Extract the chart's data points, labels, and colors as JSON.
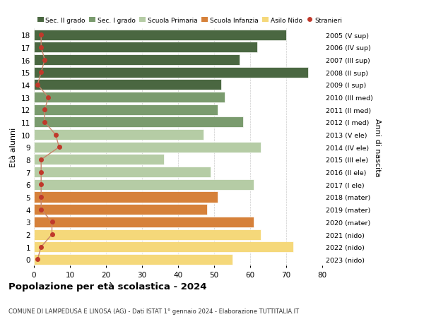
{
  "ages": [
    18,
    17,
    16,
    15,
    14,
    13,
    12,
    11,
    10,
    9,
    8,
    7,
    6,
    5,
    4,
    3,
    2,
    1,
    0
  ],
  "bar_values": [
    70,
    62,
    57,
    76,
    52,
    53,
    51,
    58,
    47,
    63,
    36,
    49,
    61,
    51,
    48,
    61,
    63,
    72,
    55
  ],
  "stranieri": [
    2,
    2,
    3,
    2,
    1,
    4,
    3,
    3,
    6,
    7,
    2,
    2,
    2,
    2,
    2,
    5,
    5,
    2,
    1
  ],
  "right_labels": [
    "2005 (V sup)",
    "2006 (IV sup)",
    "2007 (III sup)",
    "2008 (II sup)",
    "2009 (I sup)",
    "2010 (III med)",
    "2011 (II med)",
    "2012 (I med)",
    "2013 (V ele)",
    "2014 (IV ele)",
    "2015 (III ele)",
    "2016 (II ele)",
    "2017 (I ele)",
    "2018 (mater)",
    "2019 (mater)",
    "2020 (mater)",
    "2021 (nido)",
    "2022 (nido)",
    "2023 (nido)"
  ],
  "bar_colors": [
    "#4a6741",
    "#4a6741",
    "#4a6741",
    "#4a6741",
    "#4a6741",
    "#7a9b6e",
    "#7a9b6e",
    "#7a9b6e",
    "#b5cca5",
    "#b5cca5",
    "#b5cca5",
    "#b5cca5",
    "#b5cca5",
    "#d6813a",
    "#d6813a",
    "#d6813a",
    "#f5d87a",
    "#f5d87a",
    "#f5d87a"
  ],
  "legend_labels": [
    "Sec. II grado",
    "Sec. I grado",
    "Scuola Primaria",
    "Scuola Infanzia",
    "Asilo Nido",
    "Stranieri"
  ],
  "legend_colors": [
    "#4a6741",
    "#7a9b6e",
    "#b5cca5",
    "#d6813a",
    "#f5d87a",
    "#c0392b"
  ],
  "title": "Popolazione per età scolastica - 2024",
  "subtitle": "COMUNE DI LAMPEDUSA E LINOSA (AG) - Dati ISTAT 1° gennaio 2024 - Elaborazione TUTTITALIA.IT",
  "ylabel": "Età alunni",
  "right_ylabel": "Anni di nascita",
  "xlim": [
    0,
    80
  ],
  "xticks": [
    0,
    10,
    20,
    30,
    40,
    50,
    60,
    70,
    80
  ],
  "background_color": "#ffffff",
  "grid_color": "#cccccc",
  "stranieri_color": "#c0392b",
  "stranieri_line_color": "#c8856b"
}
